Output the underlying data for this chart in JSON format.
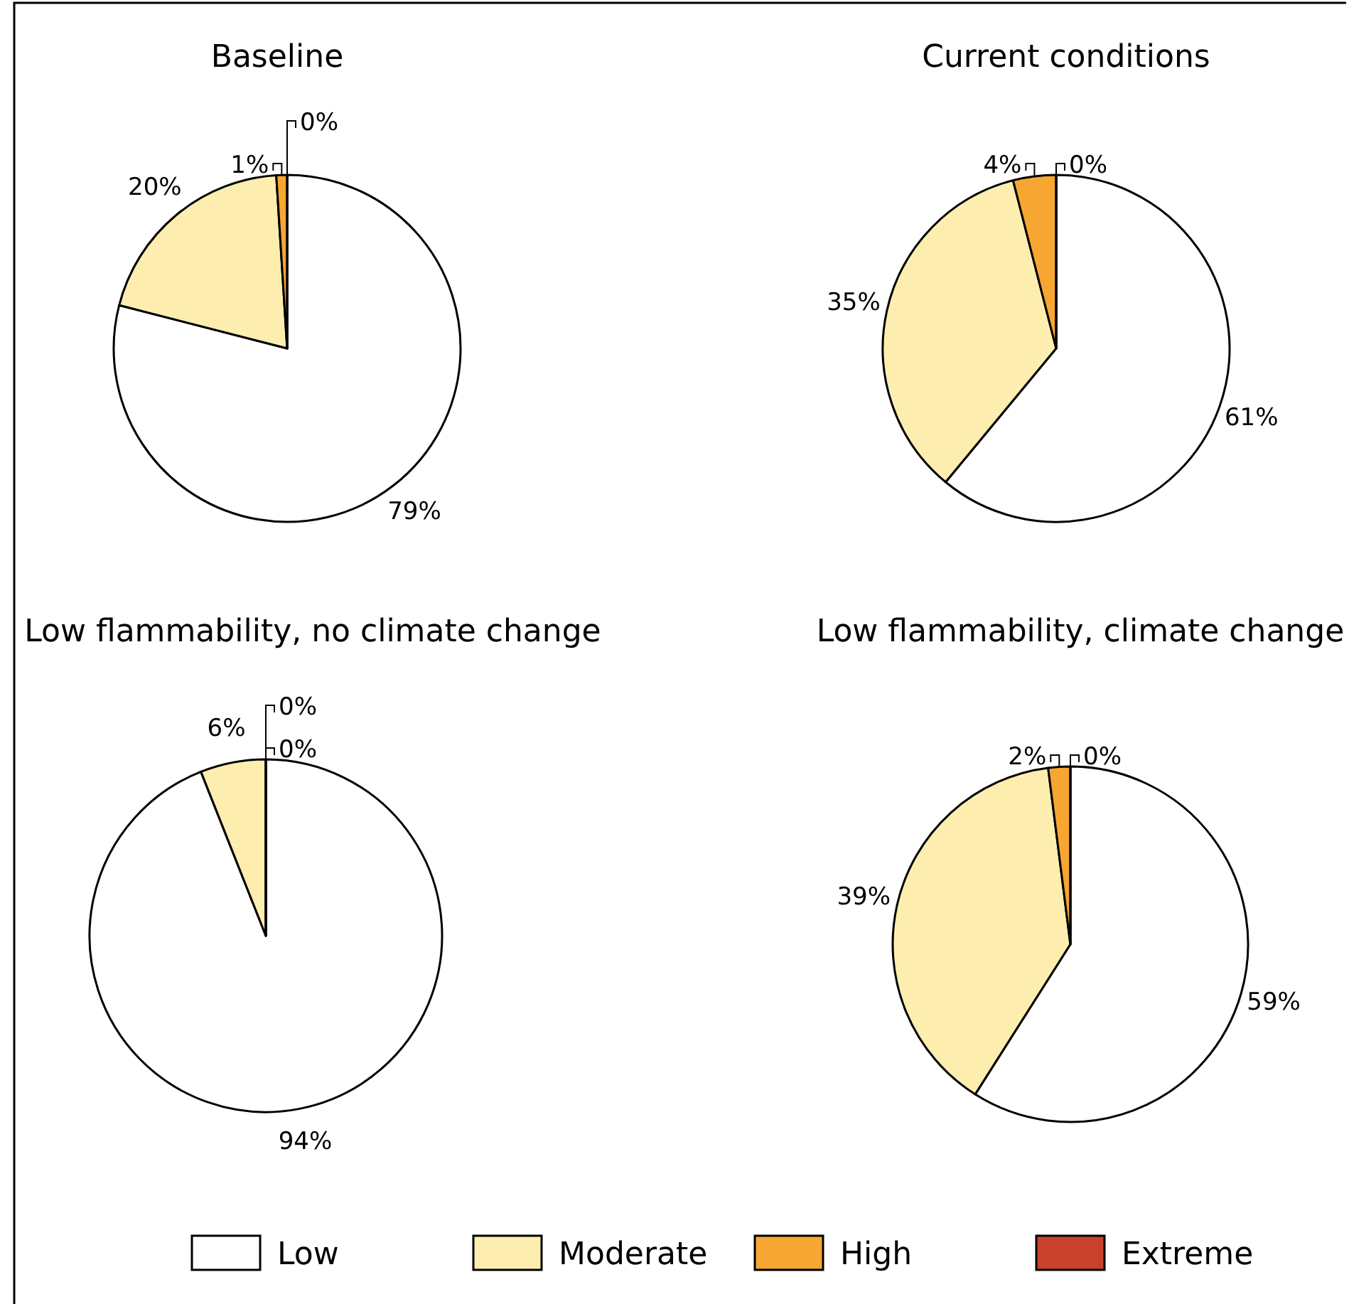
{
  "chart_data": [
    {
      "type": "pie",
      "title": "Baseline",
      "categories": [
        "Low",
        "Moderate",
        "High",
        "Extreme"
      ],
      "values": [
        79,
        20,
        1,
        0
      ],
      "value_labels": [
        "79%",
        "20%",
        "1%",
        "0%"
      ],
      "colors": [
        "#ffffff",
        "#fdeeb0",
        "#f6a631",
        "#c9412c"
      ],
      "legend": "bottom"
    },
    {
      "type": "pie",
      "title": "Current conditions",
      "values": [
        61,
        35,
        4,
        0
      ],
      "value_labels": [
        "61%",
        "35%",
        "4%",
        "0%"
      ],
      "colors": [
        "#ffffff",
        "#fdeeb0",
        "#f6a631",
        "#c9412c"
      ]
    },
    {
      "type": "pie",
      "title": "Low flammability, no climate change",
      "values": [
        94,
        6,
        0,
        0
      ],
      "value_labels": [
        "94%",
        "6%",
        "0%",
        "0%"
      ],
      "colors": [
        "#ffffff",
        "#fdeeb0",
        "#f6a631",
        "#c9412c"
      ]
    },
    {
      "type": "pie",
      "title": "Low flammability, climate change",
      "values": [
        59,
        39,
        2,
        0
      ],
      "value_labels": [
        "59%",
        "39%",
        "2%",
        "0%"
      ],
      "colors": [
        "#ffffff",
        "#fdeeb0",
        "#f6a631",
        "#c9412c"
      ]
    }
  ]
}
